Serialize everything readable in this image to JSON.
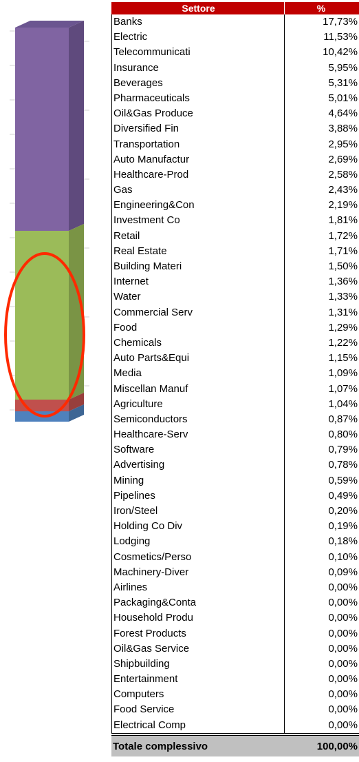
{
  "table": {
    "header": [
      "Settore",
      "%"
    ],
    "rows": [
      [
        "Banks",
        "17,73%"
      ],
      [
        "Electric",
        "11,53%"
      ],
      [
        "Telecommunicati",
        "10,42%"
      ],
      [
        "Insurance",
        "5,95%"
      ],
      [
        "Beverages",
        "5,31%"
      ],
      [
        "Pharmaceuticals",
        "5,01%"
      ],
      [
        "Oil&Gas Produce",
        "4,64%"
      ],
      [
        "Diversified Fin",
        "3,88%"
      ],
      [
        "Transportation",
        "2,95%"
      ],
      [
        "Auto Manufactur",
        "2,69%"
      ],
      [
        "Healthcare-Prod",
        "2,58%"
      ],
      [
        "Gas",
        "2,43%"
      ],
      [
        "Engineering&Con",
        "2,19%"
      ],
      [
        "Investment Co",
        "1,81%"
      ],
      [
        "Retail",
        "1,72%"
      ],
      [
        "Real Estate",
        "1,71%"
      ],
      [
        "Building Materi",
        "1,50%"
      ],
      [
        "Internet",
        "1,36%"
      ],
      [
        "Water",
        "1,33%"
      ],
      [
        "Commercial Serv",
        "1,31%"
      ],
      [
        "Food",
        "1,29%"
      ],
      [
        "Chemicals",
        "1,22%"
      ],
      [
        "Auto Parts&Equi",
        "1,15%"
      ],
      [
        "Media",
        "1,09%"
      ],
      [
        "Miscellan Manuf",
        "1,07%"
      ],
      [
        "Agriculture",
        "1,04%"
      ],
      [
        "Semiconductors",
        "0,87%"
      ],
      [
        "Healthcare-Serv",
        "0,80%"
      ],
      [
        "Software",
        "0,79%"
      ],
      [
        "Advertising",
        "0,78%"
      ],
      [
        "Mining",
        "0,59%"
      ],
      [
        "Pipelines",
        "0,49%"
      ],
      [
        "Iron/Steel",
        "0,20%"
      ],
      [
        "Holding Co Div",
        "0,19%"
      ],
      [
        "Lodging",
        "0,18%"
      ],
      [
        "Cosmetics/Perso",
        "0,10%"
      ],
      [
        "Machinery-Diver",
        "0,09%"
      ],
      [
        "Airlines",
        "0,00%"
      ],
      [
        "Packaging&Conta",
        "0,00%"
      ],
      [
        "Household Produ",
        "0,00%"
      ],
      [
        "Forest Products",
        "0,00%"
      ],
      [
        "Oil&Gas Service",
        "0,00%"
      ],
      [
        "Shipbuilding",
        "0,00%"
      ],
      [
        "Entertainment",
        "0,00%"
      ],
      [
        "Computers",
        "0,00%"
      ],
      [
        "Food Service",
        "0,00%"
      ],
      [
        "Electrical Comp",
        "0,00%"
      ]
    ],
    "total": [
      "Totale complessivo",
      "100,00%"
    ]
  }
}
